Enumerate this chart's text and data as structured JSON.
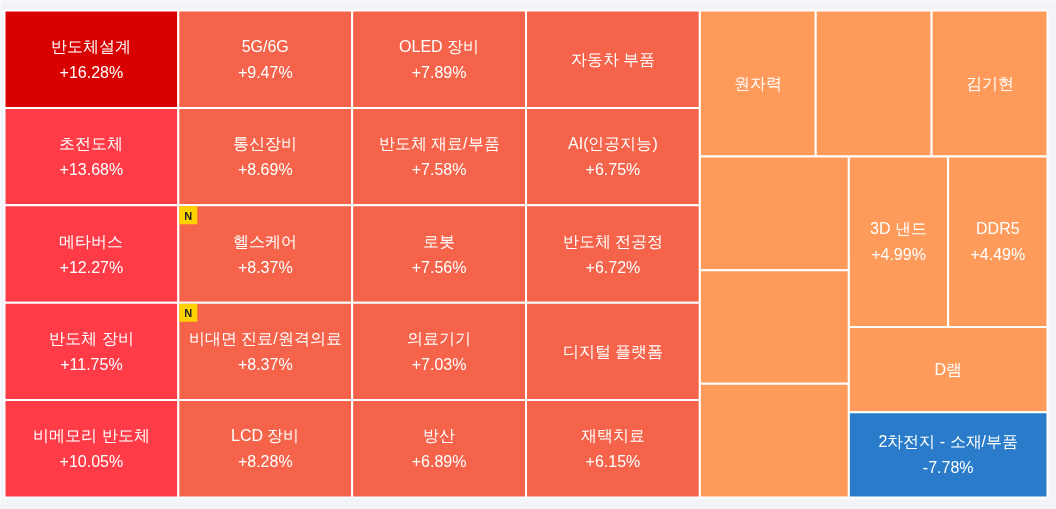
{
  "chart_data": {
    "type": "other",
    "categories": [
      "반도체설계",
      "초전도체",
      "메타버스",
      "반도체 장비",
      "비메모리 반도체",
      "5G/6G",
      "통신장비",
      "헬스케어",
      "비대면 진료/원격의료",
      "LCD 장비",
      "OLED 장비",
      "반도체 재료/부품",
      "로봇",
      "의료기기",
      "방산",
      "자동차 부품",
      "AI(인공지능)",
      "반도체 전공정",
      "디지털 플랫폼",
      "재택치료",
      "원자력",
      null,
      "김기현",
      null,
      null,
      null,
      "3D 낸드",
      "DDR5",
      "D램",
      "2차전지 - 소재/부품"
    ],
    "values": [
      16.28,
      13.68,
      12.27,
      11.75,
      10.05,
      9.47,
      8.69,
      8.37,
      8.37,
      8.28,
      7.89,
      7.58,
      7.56,
      7.03,
      6.89,
      null,
      6.75,
      6.72,
      null,
      6.15,
      null,
      null,
      null,
      null,
      null,
      null,
      4.99,
      4.49,
      null,
      -7.78
    ],
    "value_labels": [
      "+16.28%",
      "+13.68%",
      "+12.27%",
      "+11.75%",
      "+10.05%",
      "+9.47%",
      "+8.69%",
      "+8.37%",
      "+8.37%",
      "+8.28%",
      "+7.89%",
      "+7.58%",
      "+7.56%",
      "+7.03%",
      "+6.89%",
      null,
      "+6.75%",
      "+6.72%",
      null,
      "+6.15%",
      null,
      null,
      null,
      null,
      null,
      null,
      "+4.99%",
      "+4.49%",
      null,
      "-7.78%"
    ],
    "colors": [
      "#d90000",
      "#ff3b47",
      "#ff3b47",
      "#ff3b47",
      "#ff3b47",
      "#f4634a",
      "#f4634a",
      "#f4634a",
      "#f4634a",
      "#f4634a",
      "#f4634a",
      "#f4634a",
      "#f4634a",
      "#f4634a",
      "#f4634a",
      "#f4634a",
      "#f4634a",
      "#f4634a",
      "#f4634a",
      "#f4634a",
      "#ff9b5a",
      "#ff9b5a",
      "#ff9b5a",
      "#ff9b5a",
      "#ff9b5a",
      "#ff9b5a",
      "#ff9b5a",
      "#ff9b5a",
      "#ff9b5a",
      "#2a7cca"
    ],
    "annotations": [
      {
        "text": "N",
        "x": "헬스케어"
      },
      {
        "text": "N",
        "x": "비대면 진료/원격의료"
      }
    ]
  }
}
